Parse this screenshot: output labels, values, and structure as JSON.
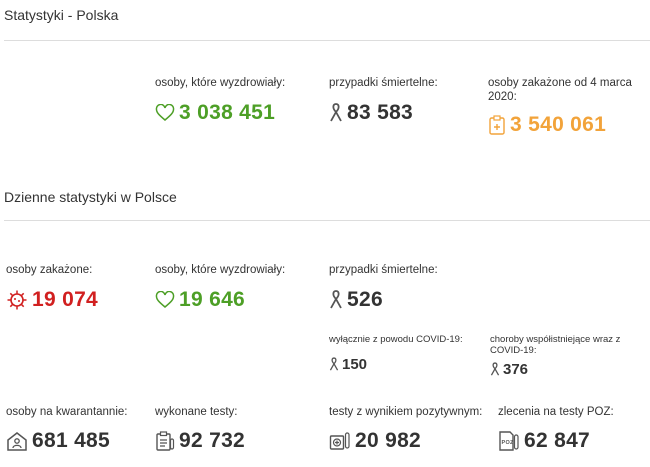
{
  "poland": {
    "title": "Statystyki - Polska",
    "recovered": {
      "label": "osoby, które wyzdrowiały:",
      "value": "3 038 451",
      "icon": "heart-icon",
      "color": "#4d9f26"
    },
    "deaths": {
      "label": "przypadki śmiertelne:",
      "value": "83 583",
      "icon": "ribbon-icon",
      "color": "#333333"
    },
    "infected": {
      "label": "osoby zakażone od 4 marca 2020:",
      "value": "3 540 061",
      "icon": "medical-clipboard-icon",
      "color": "#f2a33a"
    }
  },
  "daily": {
    "title": "Dzienne statystyki w Polsce",
    "infected": {
      "label": "osoby zakażone:",
      "value": "19 074",
      "icon": "virus-icon",
      "color": "#d12020"
    },
    "recovered": {
      "label": "osoby, które wyzdrowiały:",
      "value": "19 646",
      "icon": "heart-icon",
      "color": "#4d9f26"
    },
    "deaths": {
      "label": "przypadki śmiertelne:",
      "value": "526",
      "icon": "ribbon-icon"
    },
    "deaths_covid_only": {
      "label": "wyłącznie z powodu COVID-19:",
      "value": "150",
      "icon": "ribbon-icon"
    },
    "deaths_comorbid": {
      "label": "choroby współistniejące wraz z COVID-19:",
      "value": "376",
      "icon": "ribbon-icon"
    },
    "quarantine": {
      "label": "osoby na kwarantannie:",
      "value": "681 485",
      "icon": "house-person-icon"
    },
    "tests": {
      "label": "wykonane testy:",
      "value": "92 732",
      "icon": "test-clipboard-icon"
    },
    "positive_tests": {
      "label": "testy z wynikiem pozytywnym:",
      "value": "20 982",
      "icon": "test-tube-plus-icon"
    },
    "poz_orders": {
      "label": "zlecenia na testy POZ:",
      "value": "62 847",
      "icon": "poz-document-icon"
    }
  }
}
